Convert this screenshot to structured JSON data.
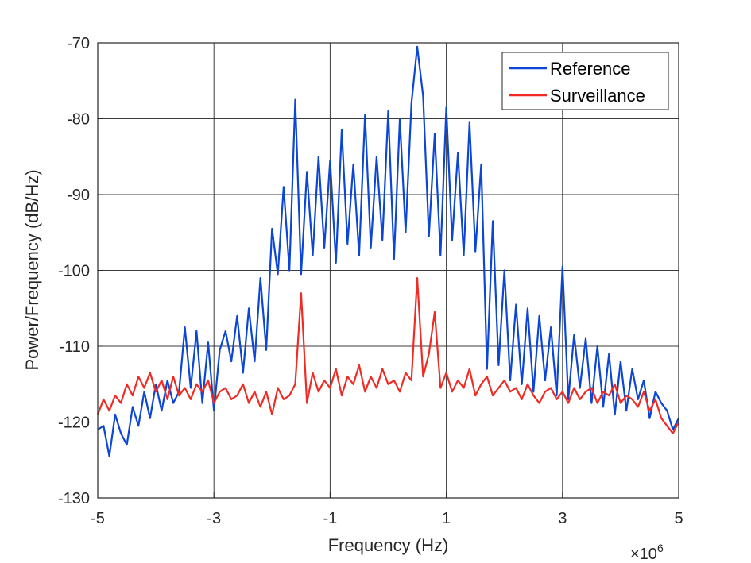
{
  "chart_data": {
    "type": "line",
    "title": "",
    "xlabel": "Frequency (Hz)",
    "ylabel": "Power/Frequency (dB/Hz)",
    "x_exponent_label": "×10",
    "x_exponent_power": "6",
    "xlim": [
      -5,
      5
    ],
    "ylim": [
      -130,
      -70
    ],
    "xticks": [
      -5,
      -3,
      -1,
      1,
      3,
      5
    ],
    "xtick_labels": [
      "-5",
      "-3",
      "-1",
      "1",
      "3",
      "5"
    ],
    "yticks": [
      -130,
      -120,
      -110,
      -100,
      -90,
      -80,
      -70
    ],
    "ytick_labels": [
      "-130",
      "-120",
      "-110",
      "-100",
      "-90",
      "-80",
      "-70"
    ],
    "grid": true,
    "legend_position": "top-right",
    "series": [
      {
        "name": "Reference",
        "color": "#0b46d6",
        "x": [
          -5.0,
          -4.9,
          -4.8,
          -4.7,
          -4.6,
          -4.5,
          -4.4,
          -4.3,
          -4.2,
          -4.1,
          -4.0,
          -3.9,
          -3.8,
          -3.7,
          -3.6,
          -3.5,
          -3.4,
          -3.3,
          -3.2,
          -3.1,
          -3.0,
          -2.9,
          -2.8,
          -2.7,
          -2.6,
          -2.5,
          -2.4,
          -2.3,
          -2.2,
          -2.1,
          -2.0,
          -1.9,
          -1.8,
          -1.7,
          -1.6,
          -1.5,
          -1.4,
          -1.3,
          -1.2,
          -1.1,
          -1.0,
          -0.9,
          -0.8,
          -0.7,
          -0.6,
          -0.5,
          -0.4,
          -0.3,
          -0.2,
          -0.1,
          0.0,
          0.1,
          0.2,
          0.3,
          0.4,
          0.5,
          0.6,
          0.7,
          0.8,
          0.9,
          1.0,
          1.1,
          1.2,
          1.3,
          1.4,
          1.5,
          1.6,
          1.7,
          1.8,
          1.9,
          2.0,
          2.1,
          2.2,
          2.3,
          2.4,
          2.5,
          2.6,
          2.7,
          2.8,
          2.9,
          3.0,
          3.1,
          3.2,
          3.3,
          3.4,
          3.5,
          3.6,
          3.7,
          3.8,
          3.9,
          4.0,
          4.1,
          4.2,
          4.3,
          4.4,
          4.5,
          4.6,
          4.7,
          4.8,
          4.9,
          5.0
        ],
        "y": [
          -121.0,
          -120.5,
          -124.5,
          -119.0,
          -121.5,
          -123.0,
          -118.0,
          -120.5,
          -116.0,
          -119.5,
          -115.0,
          -118.5,
          -114.5,
          -117.5,
          -116.0,
          -107.5,
          -115.5,
          -108.0,
          -117.5,
          -109.5,
          -118.5,
          -110.5,
          -108.0,
          -112.0,
          -106.0,
          -113.5,
          -105.0,
          -112.0,
          -101.0,
          -110.5,
          -94.5,
          -100.5,
          -89.0,
          -100.0,
          -77.5,
          -100.5,
          -87.0,
          -98.0,
          -85.0,
          -97.0,
          -85.5,
          -99.0,
          -81.5,
          -96.5,
          -86.0,
          -98.0,
          -79.5,
          -97.0,
          -85.0,
          -96.0,
          -79.0,
          -98.5,
          -80.0,
          -95.0,
          -78.0,
          -70.5,
          -77.0,
          -95.5,
          -82.0,
          -98.0,
          -78.5,
          -96.0,
          -84.5,
          -98.0,
          -80.5,
          -97.5,
          -86.0,
          -113.0,
          -93.5,
          -112.5,
          -100.0,
          -114.5,
          -104.5,
          -115.0,
          -105.0,
          -116.0,
          -106.0,
          -114.5,
          -107.5,
          -116.5,
          -99.5,
          -117.0,
          -108.5,
          -115.5,
          -109.0,
          -117.5,
          -110.0,
          -118.0,
          -111.0,
          -119.0,
          -112.0,
          -118.5,
          -113.0,
          -117.0,
          -114.5,
          -119.5,
          -116.0,
          -117.5,
          -118.5,
          -121.0,
          -119.5
        ]
      },
      {
        "name": "Surveillance",
        "color": "#f02b24",
        "x": [
          -5.0,
          -4.9,
          -4.8,
          -4.7,
          -4.6,
          -4.5,
          -4.4,
          -4.3,
          -4.2,
          -4.1,
          -4.0,
          -3.9,
          -3.8,
          -3.7,
          -3.6,
          -3.5,
          -3.4,
          -3.3,
          -3.2,
          -3.1,
          -3.0,
          -2.9,
          -2.8,
          -2.7,
          -2.6,
          -2.5,
          -2.4,
          -2.3,
          -2.2,
          -2.1,
          -2.0,
          -1.9,
          -1.8,
          -1.7,
          -1.6,
          -1.5,
          -1.4,
          -1.3,
          -1.2,
          -1.1,
          -1.0,
          -0.9,
          -0.8,
          -0.7,
          -0.6,
          -0.5,
          -0.4,
          -0.3,
          -0.2,
          -0.1,
          0.0,
          0.1,
          0.2,
          0.3,
          0.4,
          0.5,
          0.6,
          0.7,
          0.8,
          0.9,
          1.0,
          1.1,
          1.2,
          1.3,
          1.4,
          1.5,
          1.6,
          1.7,
          1.8,
          1.9,
          2.0,
          2.1,
          2.2,
          2.3,
          2.4,
          2.5,
          2.6,
          2.7,
          2.8,
          2.9,
          3.0,
          3.1,
          3.2,
          3.3,
          3.4,
          3.5,
          3.6,
          3.7,
          3.8,
          3.9,
          4.0,
          4.1,
          4.2,
          4.3,
          4.4,
          4.5,
          4.6,
          4.7,
          4.8,
          4.9,
          5.0
        ],
        "y": [
          -119.0,
          -117.0,
          -118.5,
          -116.5,
          -117.5,
          -115.0,
          -116.5,
          -114.0,
          -115.5,
          -113.5,
          -116.0,
          -114.5,
          -117.0,
          -114.0,
          -116.5,
          -115.5,
          -117.0,
          -115.0,
          -116.0,
          -114.5,
          -117.5,
          -116.0,
          -115.5,
          -117.0,
          -116.5,
          -115.0,
          -117.5,
          -116.0,
          -118.0,
          -116.0,
          -119.0,
          -115.5,
          -117.0,
          -116.5,
          -115.0,
          -103.0,
          -117.5,
          -113.5,
          -116.0,
          -114.5,
          -115.5,
          -113.0,
          -116.5,
          -114.0,
          -115.0,
          -112.5,
          -116.0,
          -114.0,
          -115.5,
          -113.0,
          -115.0,
          -114.5,
          -116.0,
          -113.5,
          -114.5,
          -101.0,
          -114.0,
          -111.0,
          -105.5,
          -115.5,
          -113.5,
          -116.0,
          -114.5,
          -115.5,
          -113.0,
          -116.5,
          -115.0,
          -114.0,
          -116.5,
          -115.5,
          -114.5,
          -116.0,
          -115.5,
          -117.0,
          -115.0,
          -116.5,
          -117.5,
          -116.0,
          -115.5,
          -117.0,
          -116.0,
          -117.5,
          -115.5,
          -117.0,
          -116.0,
          -115.5,
          -117.5,
          -116.0,
          -116.5,
          -115.0,
          -117.5,
          -116.5,
          -117.0,
          -118.0,
          -116.0,
          -118.5,
          -117.0,
          -119.5,
          -120.5,
          -121.5,
          -120.0
        ]
      }
    ]
  }
}
